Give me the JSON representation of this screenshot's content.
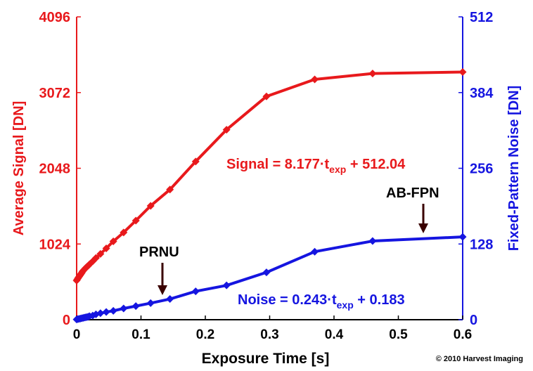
{
  "chart_data": {
    "type": "line",
    "xlabel": "Exposure Time [s]",
    "ylabel_left": "Average Signal [DN]",
    "ylabel_right": "Fixed-Pattern Noise [DN]",
    "xlim": [
      0,
      0.6
    ],
    "ylim_left": [
      0,
      4096
    ],
    "ylim_right": [
      0,
      512
    ],
    "x_ticks": [
      "0",
      "0.1",
      "0.2",
      "0.3",
      "0.4",
      "0.5",
      "0.6"
    ],
    "y_left_ticks": [
      "0",
      "1024",
      "2048",
      "3072",
      "4096"
    ],
    "y_right_ticks": [
      "0",
      "128",
      "256",
      "384",
      "512"
    ],
    "grid": false,
    "colors": {
      "signal": "#e8191c",
      "noise": "#1515e0",
      "axis_x": "#000000"
    },
    "series": [
      {
        "axis": "left",
        "color": "#e8191c",
        "marker": "diamond",
        "x": [
          0,
          0.001,
          0.002,
          0.003,
          0.004,
          0.005,
          0.006,
          0.007,
          0.008,
          0.009,
          0.01,
          0.012,
          0.014,
          0.016,
          0.018,
          0.02,
          0.025,
          0.03,
          0.037,
          0.046,
          0.057,
          0.073,
          0.092,
          0.115,
          0.145,
          0.185,
          0.233,
          0.295,
          0.37,
          0.46,
          0.6
        ],
        "values": [
          530,
          545,
          560,
          572,
          585,
          598,
          610,
          622,
          636,
          650,
          662,
          680,
          700,
          716,
          730,
          750,
          790,
          835,
          890,
          965,
          1060,
          1180,
          1340,
          1540,
          1760,
          2140,
          2570,
          3020,
          3250,
          3330,
          3350
        ]
      },
      {
        "axis": "right",
        "color": "#1515e0",
        "marker": "diamond",
        "x": [
          0,
          0.002,
          0.004,
          0.006,
          0.008,
          0.01,
          0.012,
          0.014,
          0.016,
          0.018,
          0.02,
          0.025,
          0.03,
          0.037,
          0.046,
          0.057,
          0.073,
          0.092,
          0.115,
          0.145,
          0.185,
          0.233,
          0.295,
          0.37,
          0.46,
          0.6
        ],
        "values": [
          0.5,
          1,
          1.5,
          2,
          2.5,
          3,
          3.5,
          4,
          4.5,
          5,
          6,
          7,
          9,
          11,
          13,
          15,
          19,
          23,
          28,
          35,
          48,
          58,
          80,
          115,
          133,
          140
        ]
      }
    ],
    "annotations": {
      "signal_eq_main": "Signal = 8.177·t",
      "signal_eq_sub": "exp",
      "signal_eq_rest": " + 512.04",
      "noise_eq_main": "Noise = 0.243·t",
      "noise_eq_sub": "exp",
      "noise_eq_rest": " + 0.183",
      "prnu_label": "PRNU",
      "abfpn_label": "AB-FPN",
      "copyright": "© 2010 Harvest Imaging"
    }
  }
}
